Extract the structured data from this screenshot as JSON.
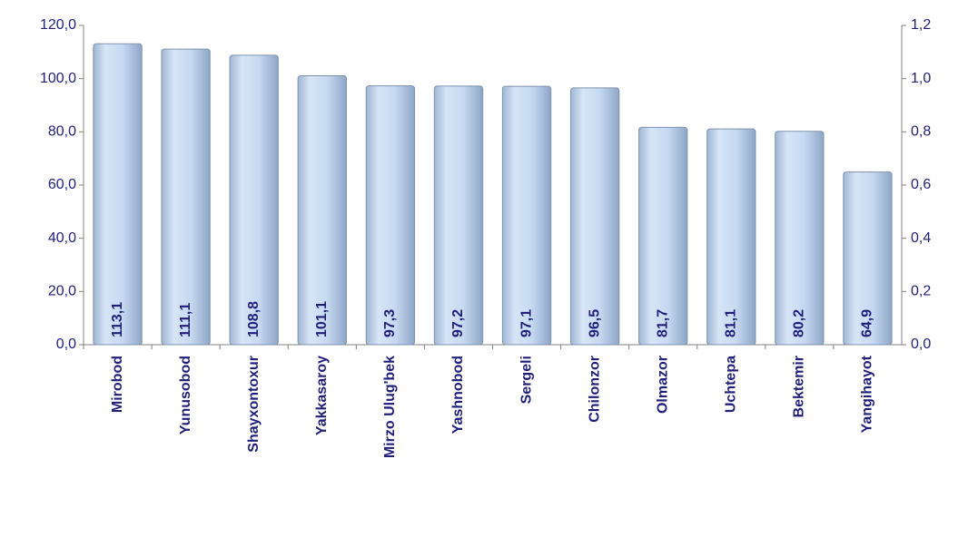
{
  "chart_data": {
    "type": "bar",
    "categories": [
      "Mirobod",
      "Yunusobod",
      "Shayxontoxur",
      "Yakkasaroy",
      "Mirzo Ulug'bek",
      "Yashnobod",
      "Sergeli",
      "Chilonzor",
      "Olmazor",
      "Uchtepa",
      "Bektemir",
      "Yangihayot"
    ],
    "values": [
      113.1,
      111.1,
      108.8,
      101.1,
      97.3,
      97.2,
      97.1,
      96.5,
      81.7,
      81.1,
      80.2,
      64.9
    ],
    "value_labels": [
      "113,1",
      "111,1",
      "108,8",
      "101,1",
      "97,3",
      "97,2",
      "97,1",
      "96,5",
      "81,7",
      "81,1",
      "80,2",
      "64,9"
    ],
    "color": "#c6d9f1",
    "ylim": [
      0,
      120
    ],
    "yticks": [
      {
        "value": 0,
        "label": "0,0"
      },
      {
        "value": 20,
        "label": "20,0"
      },
      {
        "value": 40,
        "label": "40,0"
      },
      {
        "value": 60,
        "label": "60,0"
      },
      {
        "value": 80,
        "label": "80,0"
      },
      {
        "value": 100,
        "label": "100,0"
      },
      {
        "value": 120,
        "label": "120,0"
      }
    ],
    "y2lim": [
      0,
      1.2
    ],
    "y2ticks": [
      {
        "value": 0,
        "label": "0,0"
      },
      {
        "value": 0.2,
        "label": "0,2"
      },
      {
        "value": 0.4,
        "label": "0,4"
      },
      {
        "value": 0.6,
        "label": "0,6"
      },
      {
        "value": 0.8,
        "label": "0,8"
      },
      {
        "value": 1.0,
        "label": "1,0"
      },
      {
        "value": 1.2,
        "label": "1,2"
      }
    ],
    "grid": false
  }
}
